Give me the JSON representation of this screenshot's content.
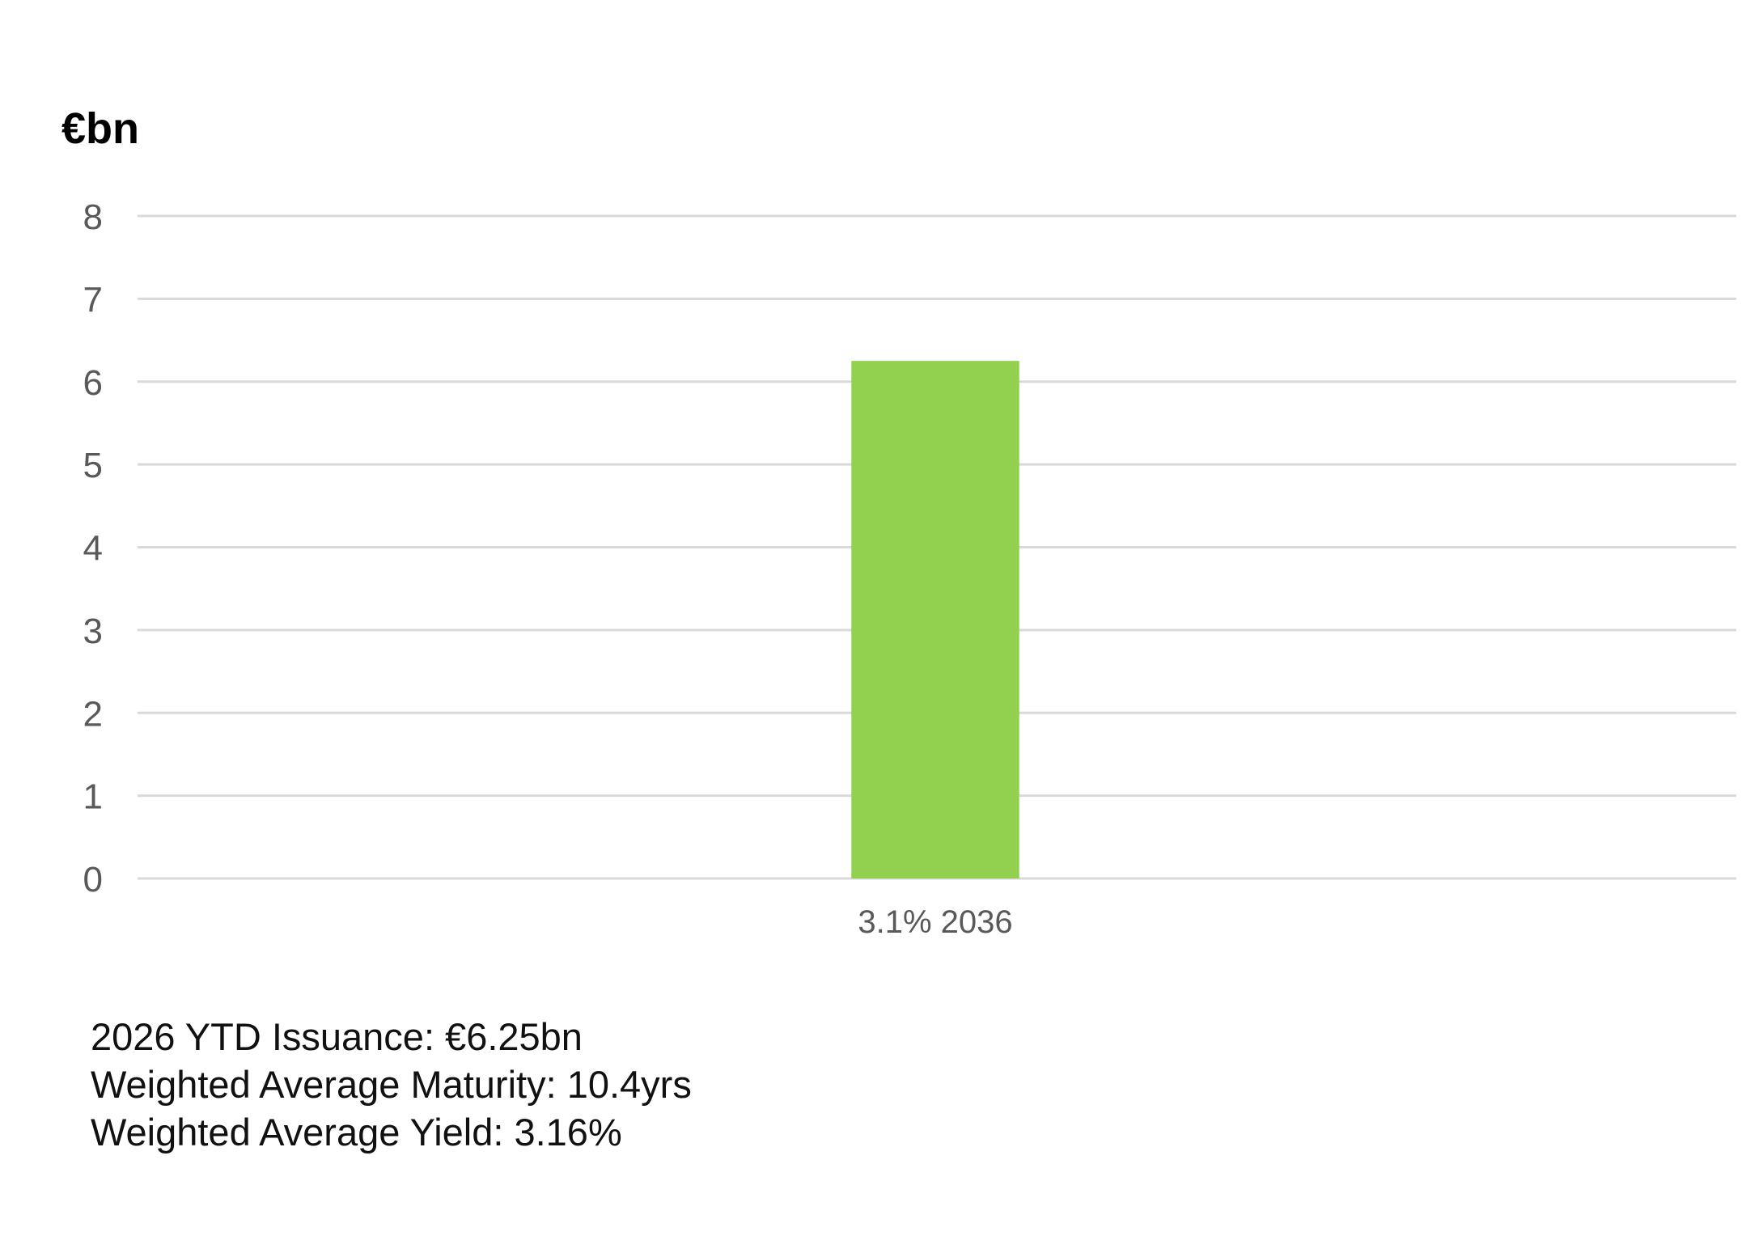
{
  "chart_data": {
    "type": "bar",
    "title": "",
    "xlabel": "",
    "ylabel": "€bn",
    "categories": [
      "3.1% 2036"
    ],
    "values": [
      6.25
    ],
    "ylim": [
      0,
      8
    ],
    "yticks": [
      0,
      1,
      2,
      3,
      4,
      5,
      6,
      7,
      8
    ],
    "grid": true,
    "legend": "none",
    "bar_color": "#92d050",
    "grid_color": "#d9d9d9"
  },
  "notes": [
    "2026 YTD Issuance: €6.25bn",
    "Weighted Average Maturity: 10.4yrs",
    "Weighted Average Yield: 3.16%"
  ]
}
